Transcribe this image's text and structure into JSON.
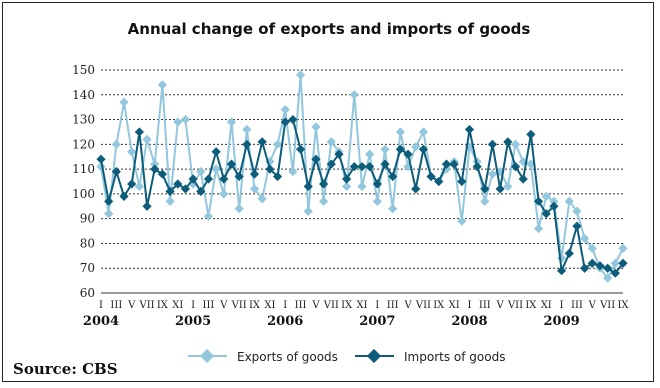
{
  "source": "Source: CBS",
  "chart_data": {
    "type": "line",
    "title": "Annual change of exports and imports of goods",
    "ylim": [
      60,
      150
    ],
    "yticks": [
      60,
      70,
      80,
      90,
      100,
      110,
      120,
      130,
      140,
      150
    ],
    "grid": true,
    "legend_position": "bottom",
    "month_labels": [
      "I",
      "III",
      "V",
      "VII",
      "IX",
      "XI"
    ],
    "years": [
      "2004",
      "2005",
      "2006",
      "2007",
      "2008",
      "2009"
    ],
    "months_count": 69,
    "series": [
      {
        "name": "Exports of goods",
        "color": "#92c7de",
        "values": [
          111,
          92,
          120,
          137,
          117,
          103,
          122,
          112,
          144,
          97,
          129,
          130,
          104,
          109,
          91,
          110,
          100,
          129,
          94,
          126,
          102,
          98,
          113,
          120,
          134,
          109,
          148,
          93,
          127,
          97,
          121,
          117,
          103,
          140,
          103,
          116,
          97,
          118,
          94,
          125,
          111,
          119,
          125,
          107,
          105,
          110,
          113,
          89,
          119,
          113,
          97,
          108,
          109,
          103,
          120,
          113,
          112,
          86,
          99,
          97,
          74,
          97,
          93,
          82,
          78,
          70,
          66,
          72,
          78
        ]
      },
      {
        "name": "Imports of goods",
        "color": "#0d5c7a",
        "values": [
          114,
          97,
          109,
          99,
          104,
          125,
          95,
          110,
          108,
          101,
          104,
          102,
          106,
          101,
          106,
          117,
          106,
          112,
          107,
          120,
          108,
          121,
          110,
          107,
          129,
          130,
          118,
          103,
          114,
          104,
          112,
          116,
          106,
          111,
          111,
          111,
          104,
          112,
          107,
          118,
          116,
          102,
          118,
          107,
          105,
          112,
          112,
          105,
          126,
          111,
          102,
          120,
          102,
          121,
          111,
          106,
          124,
          97,
          92,
          95,
          69,
          76,
          87,
          70,
          72,
          71,
          70,
          68,
          72
        ]
      }
    ]
  }
}
